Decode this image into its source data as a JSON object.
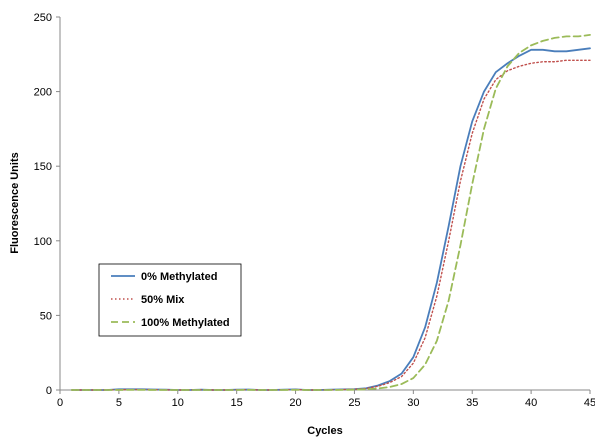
{
  "chart_data": {
    "type": "line",
    "title": "",
    "xlabel": "Cycles",
    "ylabel": "Fluorescence Units",
    "xlim": [
      0,
      45
    ],
    "ylim": [
      0,
      250
    ],
    "xticks": [
      0,
      5,
      10,
      15,
      20,
      25,
      30,
      35,
      40,
      45
    ],
    "yticks": [
      0,
      50,
      100,
      150,
      200,
      250
    ],
    "grid": false,
    "legend_position": "left",
    "series": [
      {
        "name": "0% Methylated",
        "color": "#4a7ebb",
        "style": "solid",
        "x": [
          1,
          2,
          3,
          4,
          5,
          6,
          7,
          8,
          9,
          10,
          11,
          12,
          13,
          14,
          15,
          16,
          17,
          18,
          19,
          20,
          21,
          22,
          23,
          24,
          25,
          26,
          27,
          28,
          29,
          30,
          31,
          32,
          33,
          34,
          35,
          36,
          37,
          38,
          39,
          40,
          41,
          42,
          43,
          44,
          45
        ],
        "y": [
          0,
          0,
          0,
          0,
          0.5,
          0.5,
          0.5,
          0.3,
          0.2,
          0,
          0,
          0.2,
          0,
          0,
          0.2,
          0.3,
          0,
          0,
          0.2,
          0.4,
          0,
          0,
          0.2,
          0.4,
          0.6,
          1.2,
          3,
          6,
          11,
          22,
          42,
          72,
          110,
          150,
          180,
          200,
          213,
          219,
          224,
          228,
          228,
          227,
          227,
          228,
          229
        ]
      },
      {
        "name": "50% Mix",
        "color": "#c0504d",
        "style": "dotted",
        "x": [
          1,
          2,
          3,
          4,
          5,
          6,
          7,
          8,
          9,
          10,
          11,
          12,
          13,
          14,
          15,
          16,
          17,
          18,
          19,
          20,
          21,
          22,
          23,
          24,
          25,
          26,
          27,
          28,
          29,
          30,
          31,
          32,
          33,
          34,
          35,
          36,
          37,
          38,
          39,
          40,
          41,
          42,
          43,
          44,
          45
        ],
        "y": [
          0,
          0,
          0,
          0,
          0.2,
          0.3,
          0.3,
          0.2,
          0.1,
          0,
          0,
          0.1,
          0,
          0,
          0.1,
          0.2,
          0,
          0,
          0.1,
          0.3,
          0,
          0,
          0.1,
          0.3,
          0.5,
          1,
          2.5,
          5,
          9,
          18,
          35,
          63,
          100,
          140,
          172,
          195,
          208,
          214,
          217,
          219,
          220,
          220,
          221,
          221,
          221
        ]
      },
      {
        "name": "100% Methylated",
        "color": "#9bbb59",
        "style": "dashed",
        "x": [
          1,
          2,
          3,
          4,
          5,
          6,
          7,
          8,
          9,
          10,
          11,
          12,
          13,
          14,
          15,
          16,
          17,
          18,
          19,
          20,
          21,
          22,
          23,
          24,
          25,
          26,
          27,
          28,
          29,
          30,
          31,
          32,
          33,
          34,
          35,
          36,
          37,
          38,
          39,
          40,
          41,
          42,
          43,
          44,
          45
        ],
        "y": [
          0,
          0,
          0,
          0,
          0,
          0.1,
          0.1,
          0,
          0,
          0,
          0,
          0,
          0,
          0,
          0,
          0.1,
          0,
          0,
          0,
          0.1,
          0,
          0,
          0,
          0.1,
          0.2,
          0.5,
          1,
          2,
          4,
          8,
          17,
          33,
          60,
          97,
          138,
          175,
          202,
          217,
          226,
          231,
          234,
          236,
          237,
          237,
          238
        ]
      }
    ]
  }
}
